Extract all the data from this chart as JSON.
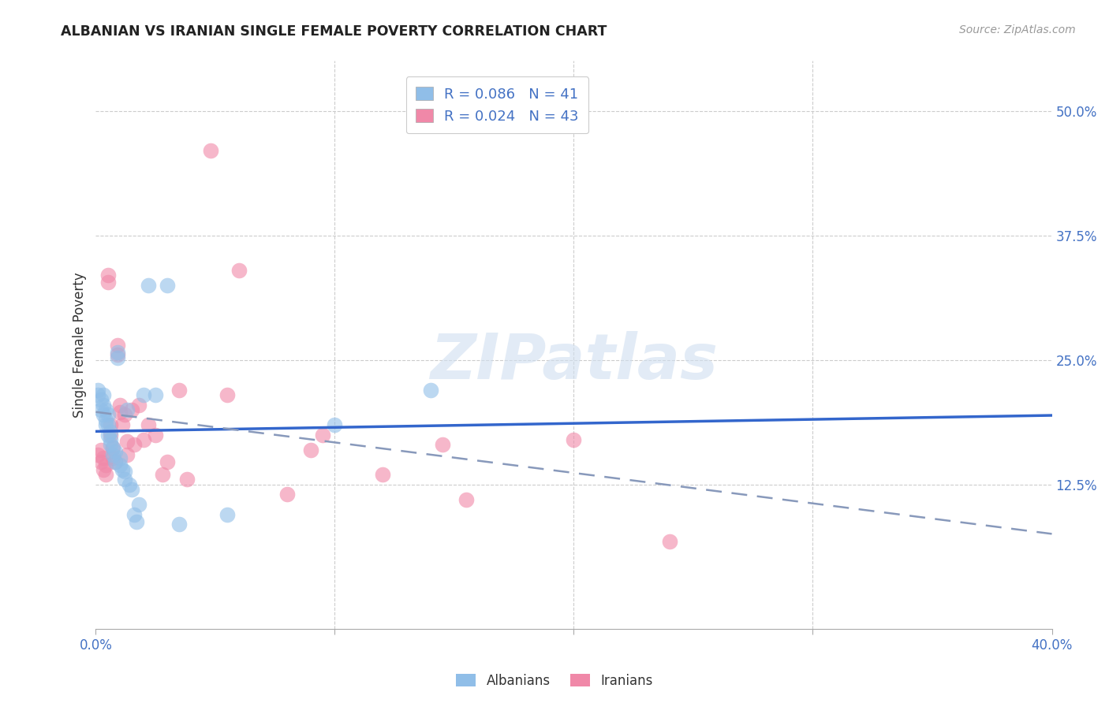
{
  "title": "ALBANIAN VS IRANIAN SINGLE FEMALE POVERTY CORRELATION CHART",
  "source": "Source: ZipAtlas.com",
  "ylabel": "Single Female Poverty",
  "xlim": [
    0.0,
    0.4
  ],
  "ylim": [
    -0.02,
    0.55
  ],
  "xticks": [
    0.0,
    0.1,
    0.2,
    0.3,
    0.4
  ],
  "xticklabels": [
    "0.0%",
    "",
    "",
    "",
    "40.0%"
  ],
  "yticks": [
    0.125,
    0.25,
    0.375,
    0.5
  ],
  "yticklabels": [
    "12.5%",
    "25.0%",
    "37.5%",
    "50.0%"
  ],
  "albanian_color": "#90BEE8",
  "iranian_color": "#F088A8",
  "albanian_line_color": "#3366CC",
  "iranian_line_color": "#CC4466",
  "albanian_R": 0.086,
  "albanian_N": 41,
  "iranian_R": 0.024,
  "iranian_N": 43,
  "legend_label_albanian": "Albanians",
  "legend_label_iranian": "Iranians",
  "watermark": "ZIPatlas",
  "background_color": "#ffffff",
  "grid_color": "#cccccc",
  "albanian_x": [
    0.001,
    0.001,
    0.002,
    0.002,
    0.003,
    0.003,
    0.003,
    0.004,
    0.004,
    0.004,
    0.005,
    0.005,
    0.005,
    0.006,
    0.006,
    0.006,
    0.007,
    0.007,
    0.008,
    0.008,
    0.009,
    0.009,
    0.01,
    0.01,
    0.011,
    0.012,
    0.012,
    0.013,
    0.014,
    0.015,
    0.016,
    0.017,
    0.018,
    0.02,
    0.022,
    0.025,
    0.03,
    0.035,
    0.055,
    0.1,
    0.14
  ],
  "albanian_y": [
    0.215,
    0.22,
    0.2,
    0.21,
    0.195,
    0.205,
    0.215,
    0.185,
    0.19,
    0.2,
    0.175,
    0.185,
    0.195,
    0.165,
    0.17,
    0.178,
    0.155,
    0.162,
    0.148,
    0.158,
    0.252,
    0.258,
    0.145,
    0.152,
    0.14,
    0.13,
    0.138,
    0.2,
    0.125,
    0.12,
    0.095,
    0.088,
    0.105,
    0.215,
    0.325,
    0.215,
    0.325,
    0.085,
    0.095,
    0.185,
    0.22
  ],
  "iranian_x": [
    0.001,
    0.002,
    0.002,
    0.003,
    0.003,
    0.004,
    0.004,
    0.005,
    0.005,
    0.006,
    0.006,
    0.007,
    0.007,
    0.008,
    0.009,
    0.009,
    0.01,
    0.01,
    0.011,
    0.012,
    0.013,
    0.013,
    0.015,
    0.016,
    0.018,
    0.02,
    0.022,
    0.025,
    0.028,
    0.03,
    0.035,
    0.038,
    0.048,
    0.055,
    0.06,
    0.08,
    0.09,
    0.095,
    0.12,
    0.145,
    0.155,
    0.2,
    0.24
  ],
  "iranian_y": [
    0.155,
    0.148,
    0.16,
    0.14,
    0.152,
    0.135,
    0.145,
    0.328,
    0.335,
    0.175,
    0.185,
    0.152,
    0.162,
    0.148,
    0.255,
    0.265,
    0.198,
    0.205,
    0.185,
    0.195,
    0.155,
    0.168,
    0.2,
    0.165,
    0.205,
    0.17,
    0.185,
    0.175,
    0.135,
    0.148,
    0.22,
    0.13,
    0.46,
    0.215,
    0.34,
    0.115,
    0.16,
    0.175,
    0.135,
    0.165,
    0.11,
    0.17,
    0.068
  ]
}
